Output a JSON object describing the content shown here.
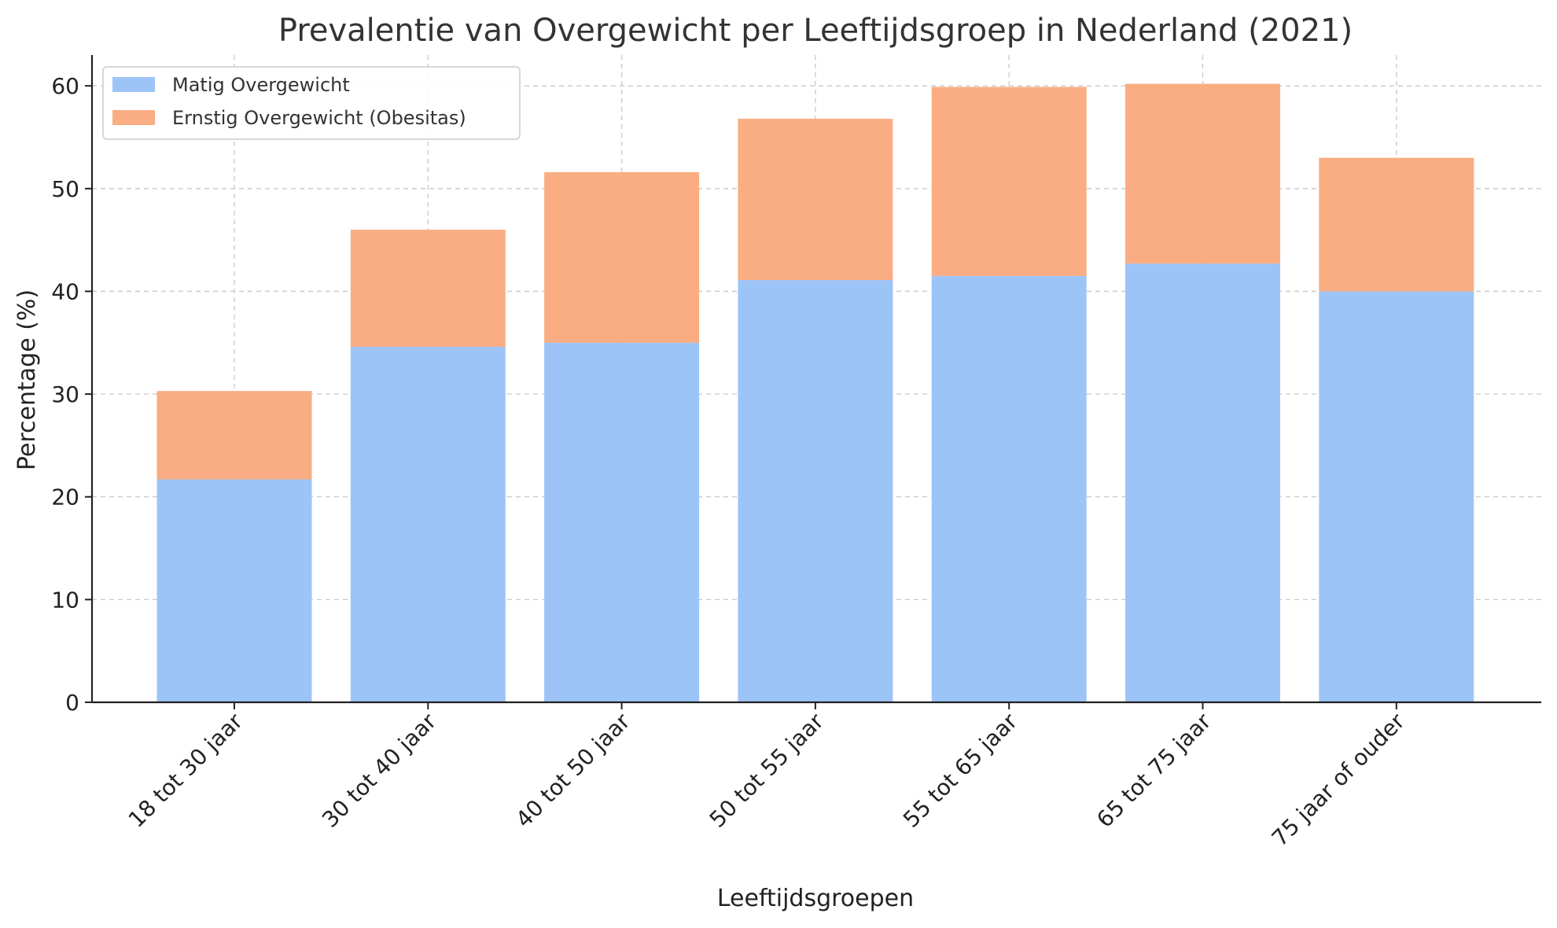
{
  "colors": {
    "matig": "#9dc4f7",
    "ernstig": "#faad82"
  },
  "chart_data": {
    "type": "bar",
    "stacked": true,
    "title": "Prevalentie van Overgewicht per Leeftijdsgroep in Nederland (2021)",
    "xlabel": "Leeftijdsgroepen",
    "ylabel": "Percentage (%)",
    "ylim": [
      0,
      63
    ],
    "yticks": [
      0,
      10,
      20,
      30,
      40,
      50,
      60
    ],
    "grid": true,
    "legend": "top-left",
    "categories": [
      "18 tot 30 jaar",
      "30 tot 40 jaar",
      "40 tot 50 jaar",
      "50 tot 55 jaar",
      "55 tot 65 jaar",
      "65 tot 75 jaar",
      "75 jaar of ouder"
    ],
    "series": [
      {
        "name": "Matig Overgewicht",
        "color": "#9dc4f7",
        "values": [
          21.7,
          34.6,
          35.0,
          41.1,
          41.5,
          42.7,
          40.0
        ]
      },
      {
        "name": "Ernstig Overgewicht (Obesitas)",
        "color": "#faad82",
        "values": [
          8.6,
          11.4,
          16.6,
          15.7,
          18.4,
          17.5,
          13.0
        ]
      }
    ]
  }
}
